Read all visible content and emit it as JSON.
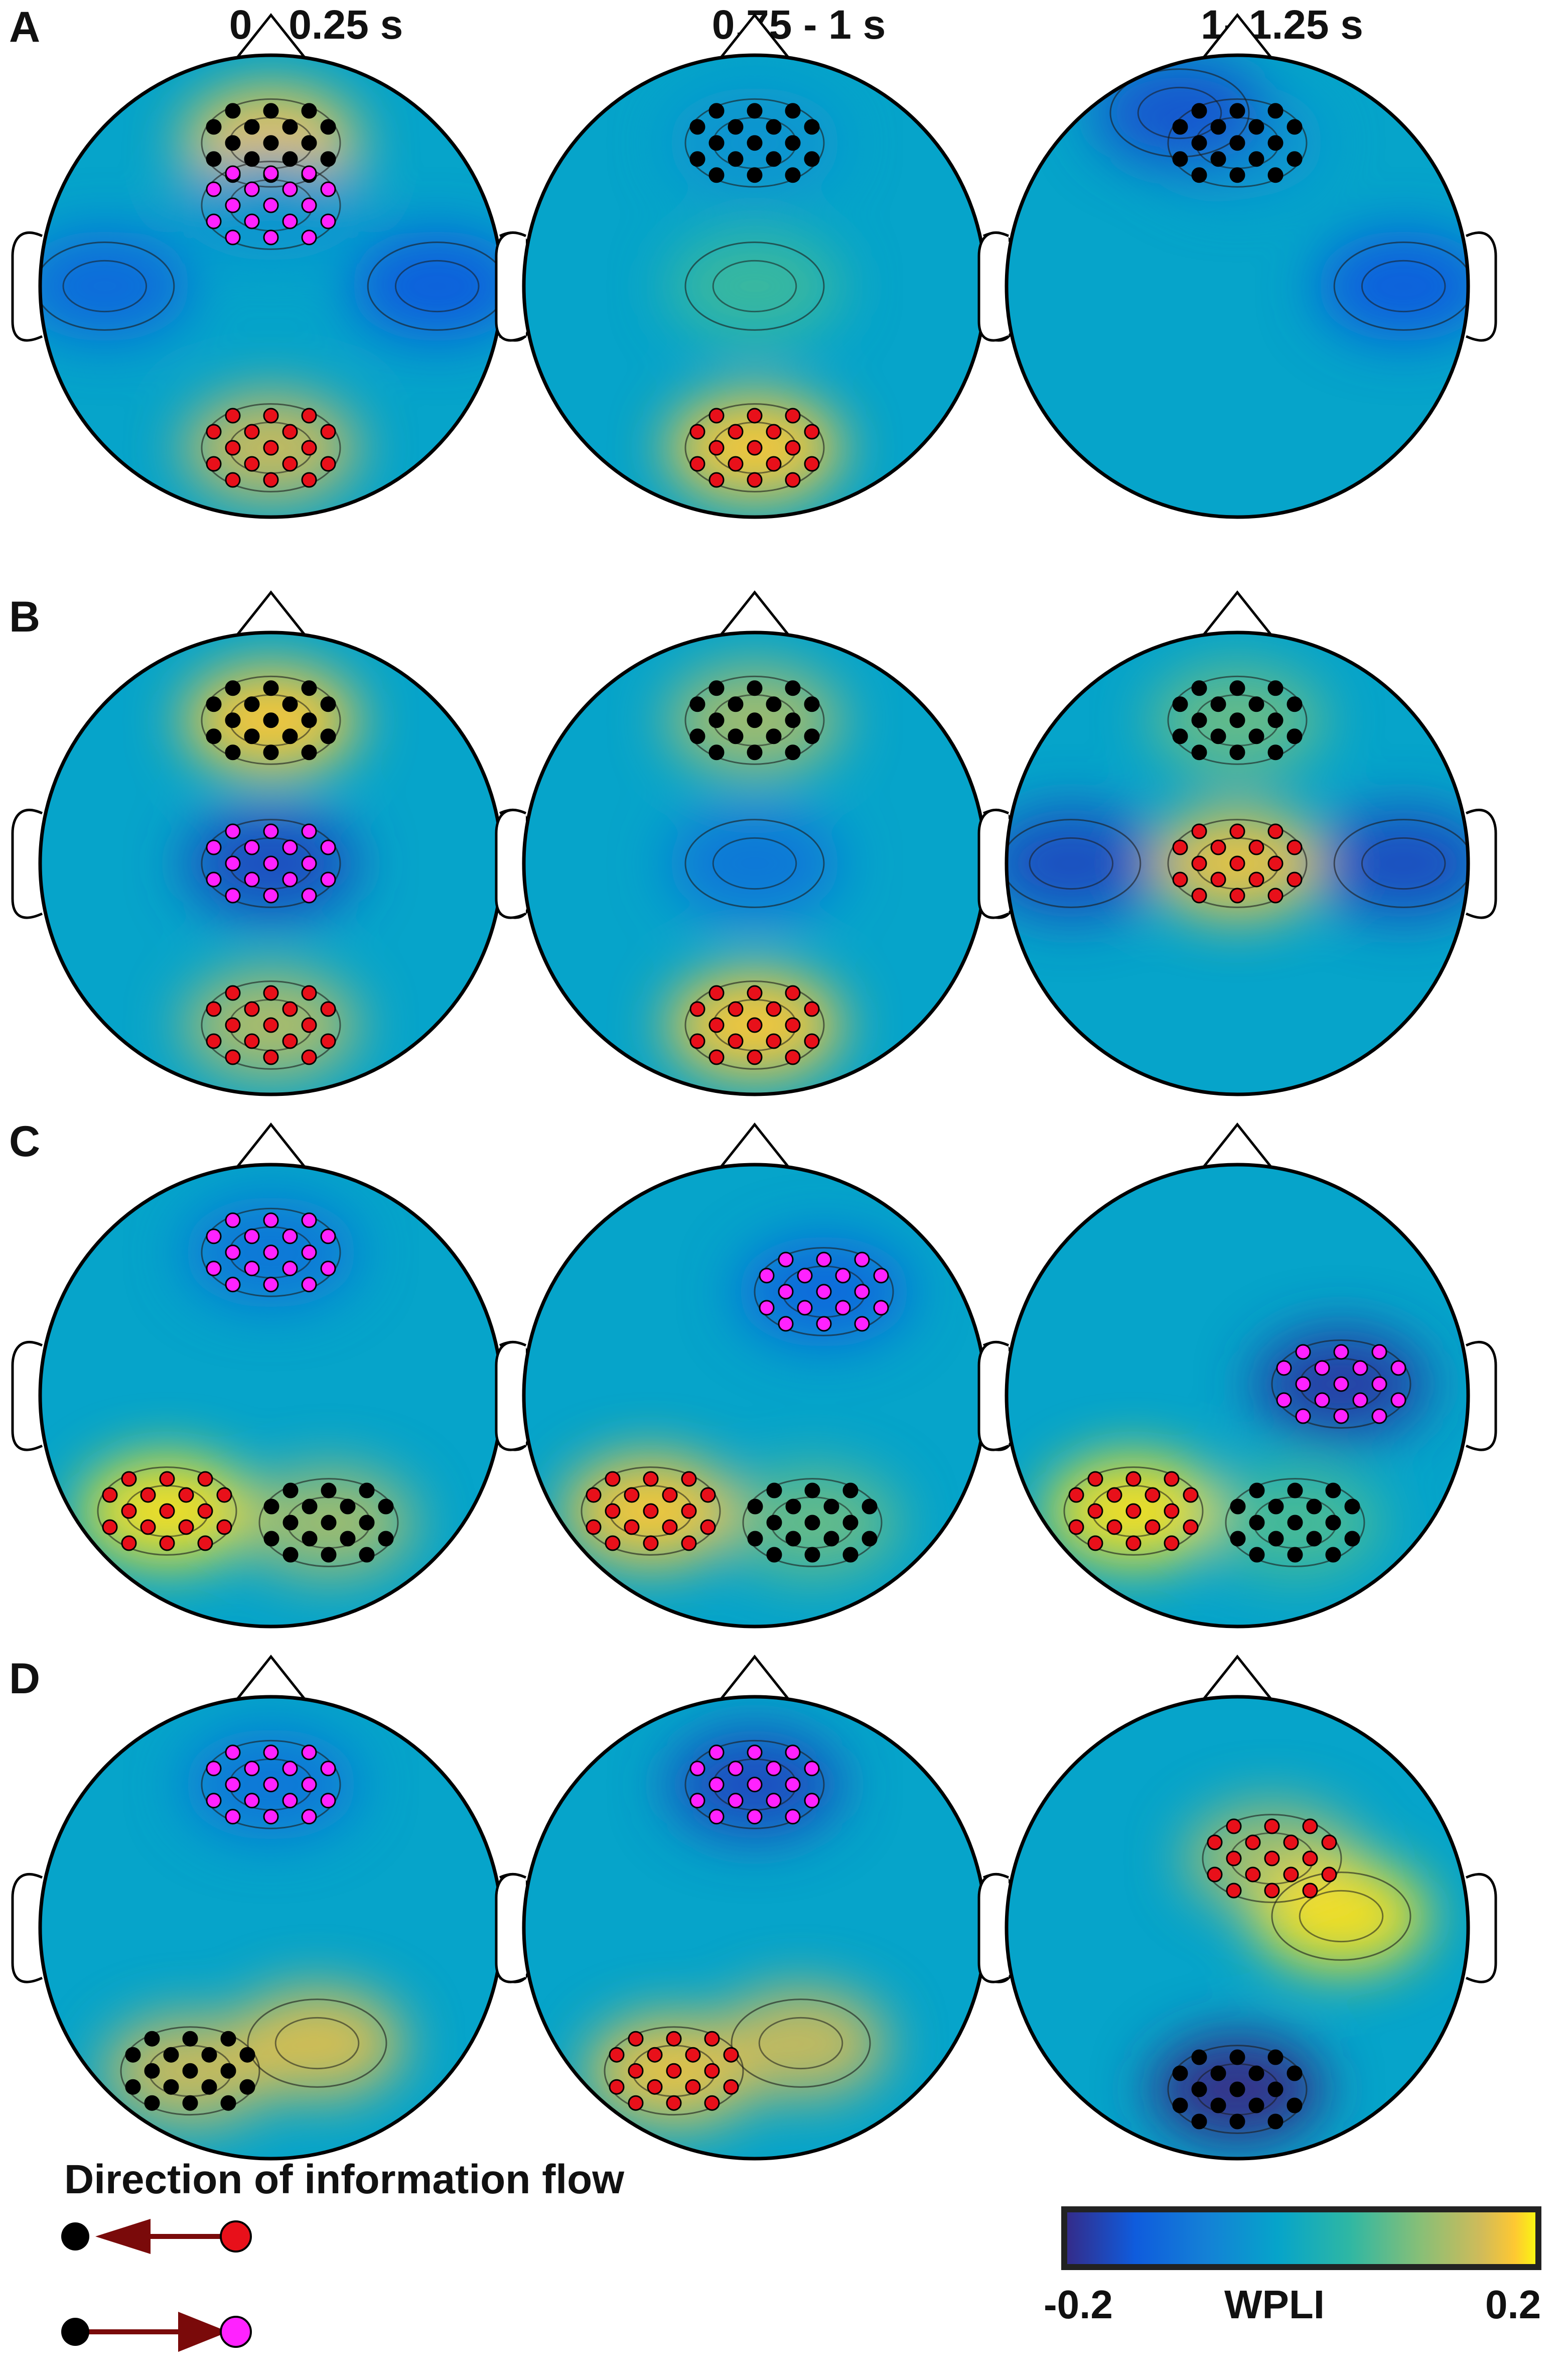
{
  "column_titles": [
    "0 - 0.25 s",
    "0.75 - 1 s",
    "1- 1.25 s"
  ],
  "row_labels": [
    "A",
    "B",
    "C",
    "D"
  ],
  "legend": {
    "title": "Direction of information flow",
    "items": [
      {
        "from": "red",
        "to": "black",
        "arrow": "left"
      },
      {
        "from": "black",
        "to": "magenta",
        "arrow": "right"
      }
    ]
  },
  "colors": {
    "source_black": "#000000",
    "target_red": "#e8101a",
    "target_magenta": "#ff22ff",
    "arrow": "#7a0a0a"
  },
  "colorbar": {
    "min_label": "-0.2",
    "mid_label": "WPLI",
    "max_label": "0.2",
    "colormap": "parula",
    "min": -0.2,
    "max": 0.2
  },
  "chart_data": {
    "type": "heatmap",
    "title": "",
    "description_units": "WPLI",
    "layout": "4 rows x 3 columns",
    "columns": [
      "0 - 0.25 s",
      "0.75 - 1 s",
      "1- 1.25 s"
    ],
    "rows": [
      "A",
      "B",
      "C",
      "D"
    ],
    "panels": [
      {
        "row": "A",
        "col": "0 - 0.25 s",
        "regions": [
          {
            "area": "frontal",
            "wpli": 0.18,
            "electrodes": "black"
          },
          {
            "area": "fronto-central",
            "wpli": -0.05,
            "electrodes": "magenta"
          },
          {
            "area": "occipital",
            "wpli": 0.15,
            "electrodes": "red"
          },
          {
            "area": "left temporal",
            "wpli": -0.12
          },
          {
            "area": "right temporal",
            "wpli": -0.14
          }
        ]
      },
      {
        "row": "A",
        "col": "0.75 - 1 s",
        "regions": [
          {
            "area": "frontal",
            "wpli": -0.05,
            "electrodes": "black"
          },
          {
            "area": "occipital",
            "wpli": 0.18,
            "electrodes": "red"
          },
          {
            "area": "central",
            "wpli": 0.05
          }
        ]
      },
      {
        "row": "A",
        "col": "1- 1.25 s",
        "regions": [
          {
            "area": "frontal",
            "wpli": -0.05,
            "electrodes": "black"
          },
          {
            "area": "left frontal",
            "wpli": -0.15
          },
          {
            "area": "right temporal",
            "wpli": -0.14
          }
        ]
      },
      {
        "row": "B",
        "col": "0 - 0.25 s",
        "regions": [
          {
            "area": "frontal",
            "wpli": 0.18,
            "electrodes": "black"
          },
          {
            "area": "central",
            "wpli": -0.16,
            "electrodes": "magenta"
          },
          {
            "area": "occipital",
            "wpli": 0.13,
            "electrodes": "red"
          }
        ]
      },
      {
        "row": "B",
        "col": "0.75 - 1 s",
        "regions": [
          {
            "area": "frontal",
            "wpli": 0.12,
            "electrodes": "black"
          },
          {
            "area": "central",
            "wpli": -0.1
          },
          {
            "area": "occipital",
            "wpli": 0.18,
            "electrodes": "red"
          }
        ]
      },
      {
        "row": "B",
        "col": "1- 1.25 s",
        "regions": [
          {
            "area": "frontal",
            "wpli": 0.08,
            "electrodes": "black"
          },
          {
            "area": "central",
            "wpli": 0.17,
            "electrodes": "red"
          },
          {
            "area": "left temporal",
            "wpli": -0.16
          },
          {
            "area": "right temporal",
            "wpli": -0.16
          }
        ]
      },
      {
        "row": "C",
        "col": "0 - 0.25 s",
        "regions": [
          {
            "area": "frontal",
            "wpli": -0.1,
            "electrodes": "magenta"
          },
          {
            "area": "left parietal",
            "wpli": 0.19,
            "electrodes": "red"
          },
          {
            "area": "right parietal",
            "wpli": 0.12,
            "electrodes": "black"
          }
        ]
      },
      {
        "row": "C",
        "col": "0.75 - 1 s",
        "regions": [
          {
            "area": "right frontal",
            "wpli": -0.12,
            "electrodes": "magenta"
          },
          {
            "area": "left parietal",
            "wpli": 0.18,
            "electrodes": "red"
          },
          {
            "area": "right parietal",
            "wpli": 0.08,
            "electrodes": "black"
          }
        ]
      },
      {
        "row": "C",
        "col": "1- 1.25 s",
        "regions": [
          {
            "area": "right central",
            "wpli": -0.18,
            "electrodes": "magenta"
          },
          {
            "area": "left parietal",
            "wpli": 0.19,
            "electrodes": "red"
          },
          {
            "area": "right parietal",
            "wpli": 0.06,
            "electrodes": "black"
          }
        ]
      },
      {
        "row": "D",
        "col": "0 - 0.25 s",
        "regions": [
          {
            "area": "frontal",
            "wpli": -0.1,
            "electrodes": "magenta"
          },
          {
            "area": "left occipital",
            "wpli": 0.15,
            "electrodes": "black"
          },
          {
            "area": "right occipital",
            "wpli": 0.16
          }
        ]
      },
      {
        "row": "D",
        "col": "0.75 - 1 s",
        "regions": [
          {
            "area": "frontal",
            "wpli": -0.16,
            "electrodes": "magenta"
          },
          {
            "area": "left occipital",
            "wpli": 0.17,
            "electrodes": "red"
          },
          {
            "area": "right occipital",
            "wpli": 0.15
          }
        ]
      },
      {
        "row": "D",
        "col": "1- 1.25 s",
        "regions": [
          {
            "area": "frontal midline",
            "wpli": 0.12,
            "electrodes": "red"
          },
          {
            "area": "right central",
            "wpli": 0.19
          },
          {
            "area": "occipital",
            "wpli": -0.2,
            "electrodes": "black"
          }
        ]
      }
    ]
  }
}
